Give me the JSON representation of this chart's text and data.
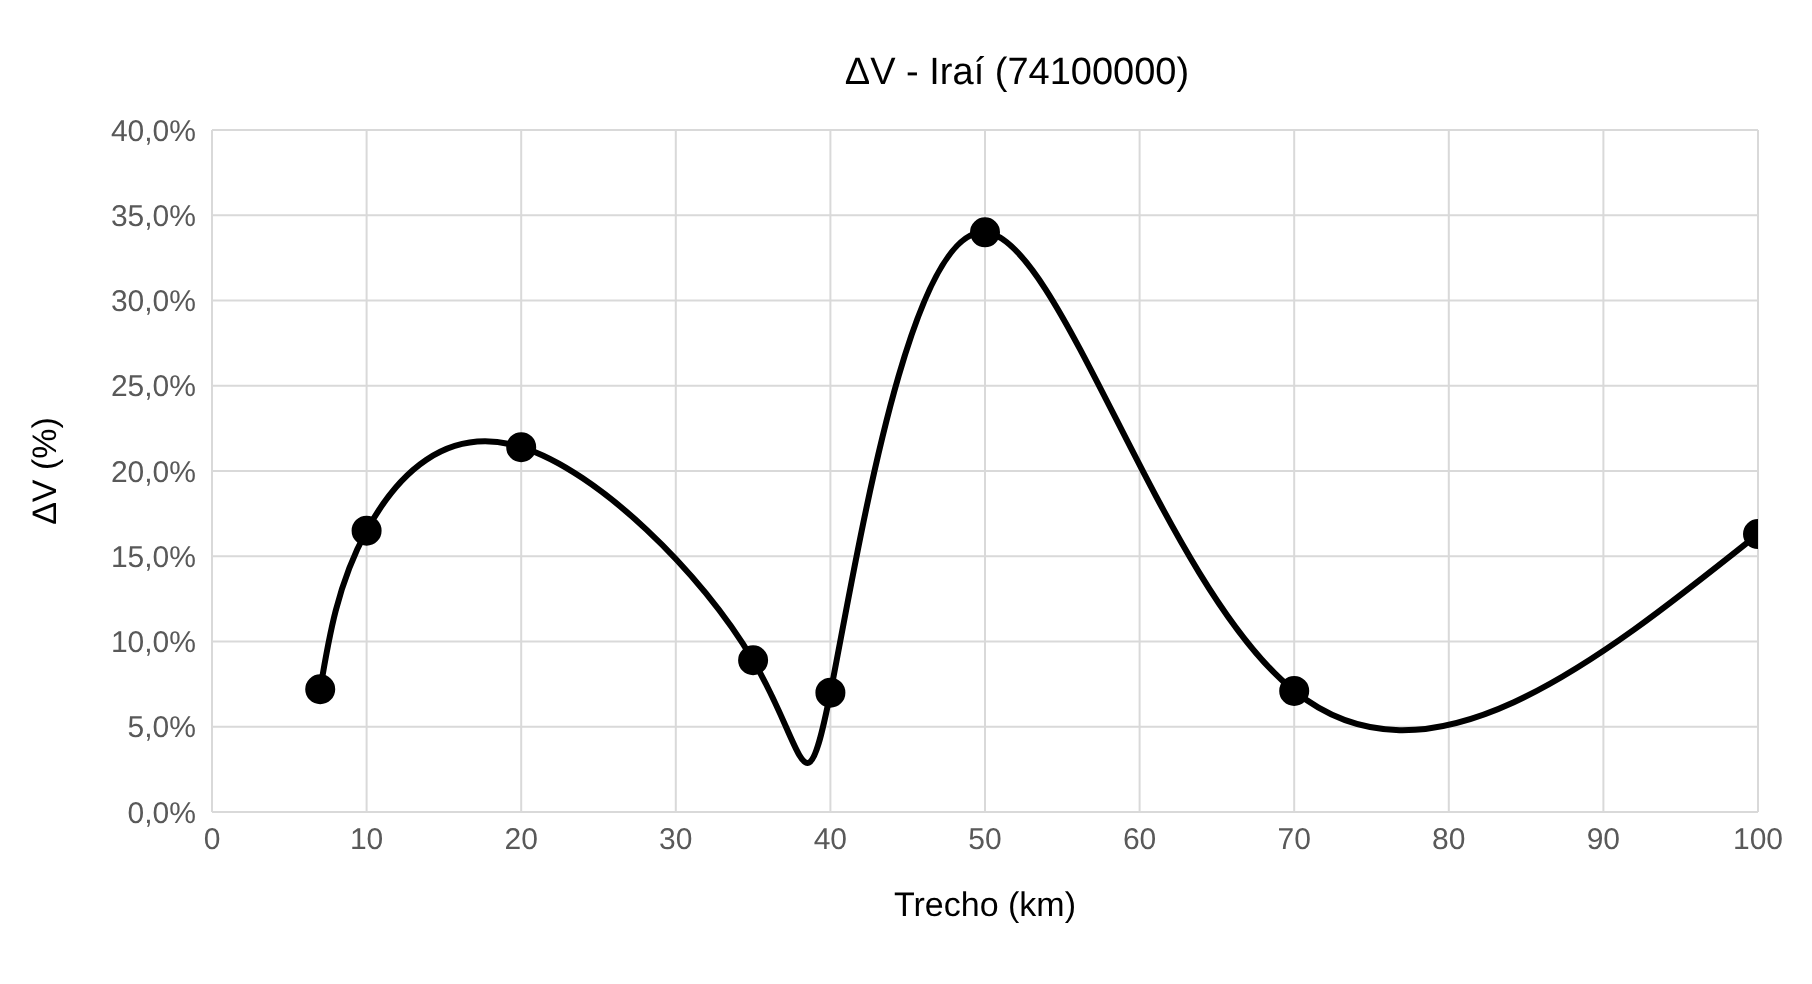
{
  "chart_data": {
    "type": "line",
    "title": "ΔV - Iraí (74100000)",
    "xlabel": "Trecho (km)",
    "ylabel": "ΔV (%)",
    "x": [
      7,
      10,
      20,
      35,
      40,
      50,
      70,
      100
    ],
    "series": [
      {
        "color": "#000000",
        "values": [
          7.2,
          16.5,
          21.4,
          8.9,
          7.0,
          34.0,
          7.1,
          16.3
        ]
      }
    ],
    "xlim": [
      0,
      100
    ],
    "xticks": [
      0,
      10,
      20,
      30,
      40,
      50,
      60,
      70,
      80,
      90,
      100
    ],
    "ylim": [
      0,
      40
    ],
    "yticks": [
      {
        "value": 0,
        "label": "0,0%"
      },
      {
        "value": 5,
        "label": "5,0%"
      },
      {
        "value": 10,
        "label": "10,0%"
      },
      {
        "value": 15,
        "label": "15,0%"
      },
      {
        "value": 20,
        "label": "20,0%"
      },
      {
        "value": 25,
        "label": "25,0%"
      },
      {
        "value": 30,
        "label": "30,0%"
      },
      {
        "value": 35,
        "label": "35,0%"
      },
      {
        "value": 40,
        "label": "40,0%"
      }
    ],
    "grid": true,
    "marker": "circle",
    "line_style": "solid"
  }
}
